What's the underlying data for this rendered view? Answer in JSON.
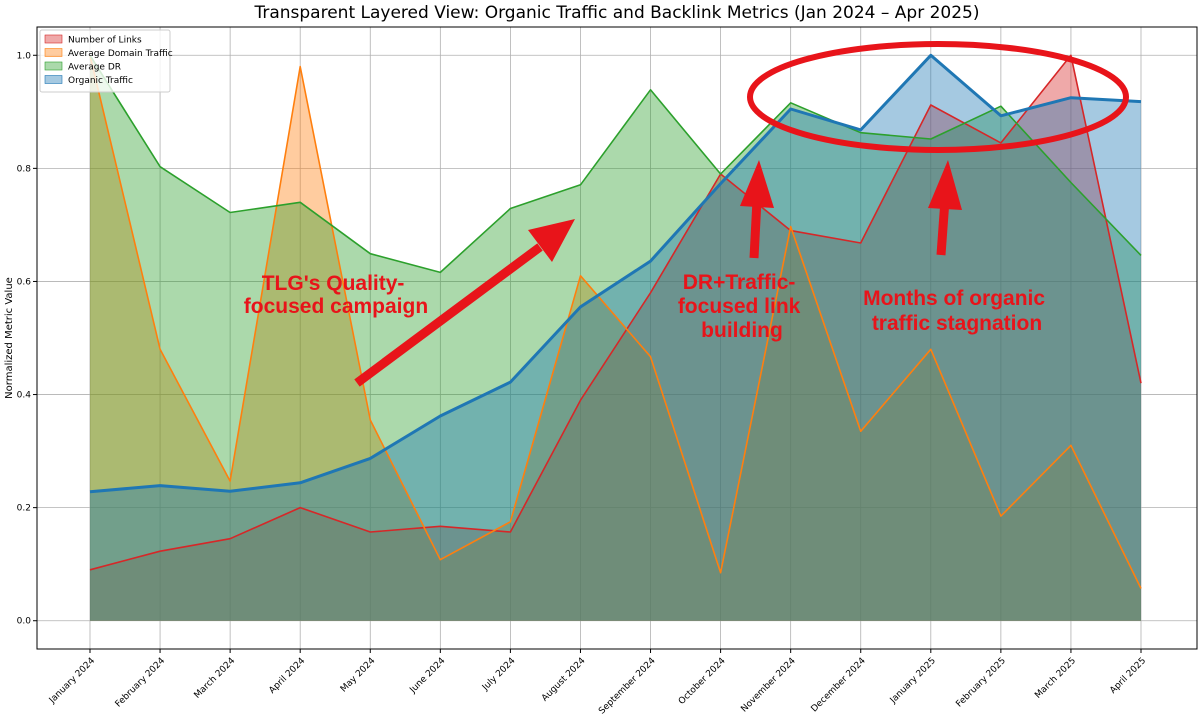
{
  "chart_data": {
    "type": "area",
    "title": "Transparent Layered View: Organic Traffic and Backlink Metrics (Jan 2024 – Apr 2025)",
    "xlabel": "",
    "ylabel": "Normalized Metric Value",
    "ylim": [
      -0.05,
      1.05
    ],
    "yticks": [
      "0.0",
      "0.2",
      "0.4",
      "0.6",
      "0.8",
      "1.0"
    ],
    "grid": true,
    "legend_position": "top-left",
    "categories": [
      "January 2024",
      "February 2024",
      "March 2024",
      "April 2024",
      "May 2024",
      "June 2024",
      "July 2024",
      "August 2024",
      "September 2024",
      "October 2024",
      "November 2024",
      "December 2024",
      "January 2025",
      "February 2025",
      "March 2025",
      "April 2025"
    ],
    "series": [
      {
        "name": "Number of Links",
        "color": "#d62728",
        "values": [
          0.09,
          0.123,
          0.145,
          0.2,
          0.157,
          0.167,
          0.157,
          0.39,
          0.58,
          0.79,
          0.69,
          0.668,
          0.912,
          0.845,
          1.0,
          0.42
        ]
      },
      {
        "name": "Average Domain Traffic",
        "color": "#ff7f0e",
        "values": [
          1.0,
          0.48,
          0.247,
          0.98,
          0.355,
          0.108,
          0.175,
          0.61,
          0.467,
          0.085,
          0.697,
          0.335,
          0.48,
          0.185,
          0.31,
          0.057
        ]
      },
      {
        "name": "Average DR",
        "color": "#2ca02c",
        "values": [
          1.0,
          0.803,
          0.722,
          0.74,
          0.649,
          0.616,
          0.729,
          0.771,
          0.939,
          0.79,
          0.916,
          0.863,
          0.852,
          0.91,
          0.775,
          0.646
        ]
      },
      {
        "name": "Organic Traffic",
        "color": "#1f77b4",
        "values": [
          0.228,
          0.239,
          0.229,
          0.244,
          0.287,
          0.362,
          0.422,
          0.555,
          0.636,
          0.773,
          0.905,
          0.868,
          1.0,
          0.893,
          0.925,
          0.918
        ]
      }
    ],
    "annotations": [
      {
        "lines": [
          "TLG's Quality-",
          "focused campaign"
        ]
      },
      {
        "lines": [
          "DR+Traffic-",
          "focused link",
          "building"
        ]
      },
      {
        "lines": [
          "Months of organic",
          "traffic stagnation"
        ]
      }
    ]
  }
}
